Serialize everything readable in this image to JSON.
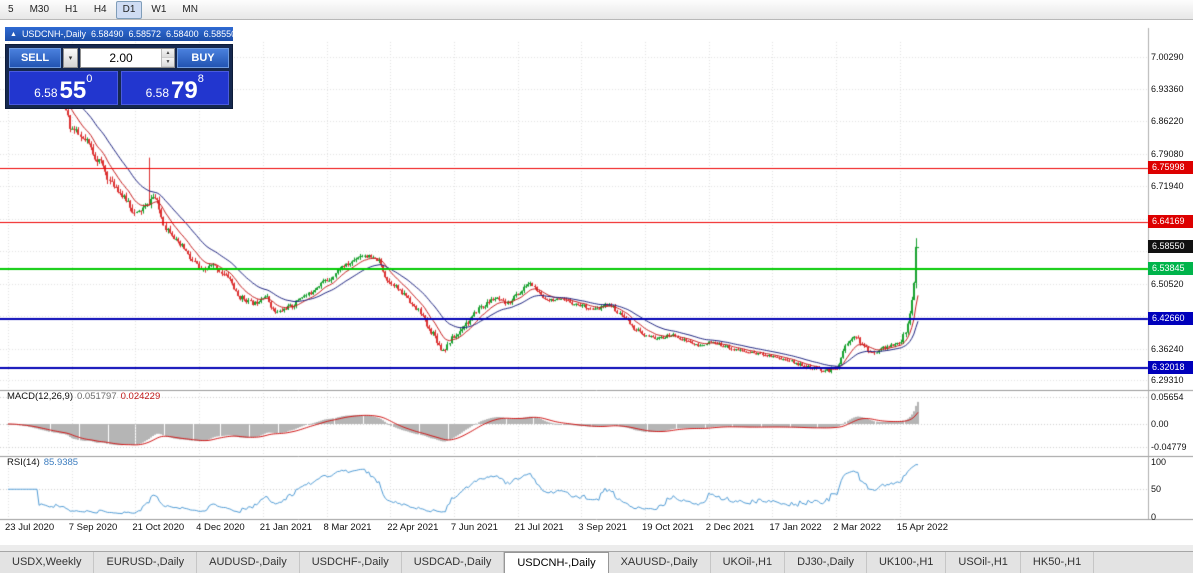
{
  "toolbar": {
    "timeframes": [
      {
        "label": "5",
        "active": false
      },
      {
        "label": "M30",
        "active": false
      },
      {
        "label": "H1",
        "active": false
      },
      {
        "label": "H4",
        "active": false
      },
      {
        "label": "D1",
        "active": true
      },
      {
        "label": "W1",
        "active": false
      },
      {
        "label": "MN",
        "active": false
      }
    ]
  },
  "icons": {
    "collapse": "▲",
    "dropdown": "▾",
    "spin_up": "▲",
    "spin_down": "▼"
  },
  "chart": {
    "title": {
      "symbol": "USDCNH-,Daily",
      "open": "6.58490",
      "high": "6.58572",
      "low": "6.58400",
      "close": "6.58550"
    },
    "trade": {
      "sell_label": "SELL",
      "buy_label": "BUY",
      "lot": "2.00",
      "sell_price": {
        "prefix": "6.58",
        "big": "55",
        "sup": "0"
      },
      "buy_price": {
        "prefix": "6.58",
        "big": "79",
        "sup": "8"
      }
    },
    "price_axis": {
      "labels": [
        {
          "text": "7.00290",
          "value": 7.0029
        },
        {
          "text": "6.93360",
          "value": 6.9336
        },
        {
          "text": "6.86220",
          "value": 6.8622
        },
        {
          "text": "6.79080",
          "value": 6.7908
        },
        {
          "text": "6.71940",
          "value": 6.7194
        },
        {
          "text": "6.50520",
          "value": 6.5052
        },
        {
          "text": "6.36240",
          "value": 6.3624
        },
        {
          "text": "6.29310",
          "value": 6.2931
        }
      ],
      "badges": [
        {
          "text": "6.75998",
          "value": 6.75998,
          "color": "#dd0000"
        },
        {
          "text": "6.64169",
          "value": 6.64169,
          "color": "#dd0000"
        },
        {
          "text": "6.58550",
          "value": 6.5855,
          "color": "#111111"
        },
        {
          "text": "6.53845",
          "value": 6.53845,
          "color": "#00b44b"
        },
        {
          "text": "6.42660",
          "value": 6.4266,
          "color": "#0000bb"
        },
        {
          "text": "6.32018",
          "value": 6.32018,
          "color": "#0000bb"
        }
      ]
    },
    "macd_panel": {
      "label": "MACD(12,26,9)",
      "value_main": "0.051797",
      "value_signal": "0.024229",
      "axis": [
        {
          "text": "0.05654",
          "value": 0.05654
        },
        {
          "text": "0.00",
          "value": 0
        },
        {
          "text": "-0.04779",
          "value": -0.04779
        }
      ]
    },
    "rsi_panel": {
      "label": "RSI(14)",
      "value": "85.9385",
      "axis": [
        {
          "text": "100",
          "value": 100
        },
        {
          "text": "50",
          "value": 50
        },
        {
          "text": "0",
          "value": 0
        }
      ]
    },
    "date_axis": [
      "23 Jul 2020",
      "7 Sep 2020",
      "21 Oct 2020",
      "4 Dec 2020",
      "21 Jan 2021",
      "8 Mar 2021",
      "22 Apr 2021",
      "7 Jun 2021",
      "21 Jul 2021",
      "3 Sep 2021",
      "19 Oct 2021",
      "2 Dec 2021",
      "17 Jan 2022",
      "2 Mar 2022",
      "15 Apr 2022"
    ]
  },
  "tabs": [
    {
      "label": "USDX,Weekly",
      "active": false
    },
    {
      "label": "EURUSD-,Daily",
      "active": false
    },
    {
      "label": "AUDUSD-,Daily",
      "active": false
    },
    {
      "label": "USDCHF-,Daily",
      "active": false
    },
    {
      "label": "USDCAD-,Daily",
      "active": false
    },
    {
      "label": "USDCNH-,Daily",
      "active": true
    },
    {
      "label": "XAUUSD-,Daily",
      "active": false
    },
    {
      "label": "UKOil-,H1",
      "active": false
    },
    {
      "label": "DJ30-,Daily",
      "active": false
    },
    {
      "label": "UK100-,H1",
      "active": false
    },
    {
      "label": "USOil-,H1",
      "active": false
    },
    {
      "label": "HK50-,H1",
      "active": false
    }
  ],
  "chart_data": {
    "type": "candlestick",
    "symbol": "USDCNH-",
    "timeframe": "Daily",
    "current_ohlc": {
      "open": 6.5849,
      "high": 6.58572,
      "low": 6.584,
      "close": 6.5855
    },
    "price_range": [
      6.276,
      7.036
    ],
    "y_grid": [
      7.0029,
      6.9336,
      6.8622,
      6.7908,
      6.7194,
      6.648,
      6.5766,
      6.5052,
      6.4338,
      6.3624,
      6.2931
    ],
    "horizontal_lines": [
      {
        "price": 6.75998,
        "color": "red"
      },
      {
        "price": 6.64169,
        "color": "red"
      },
      {
        "price": 6.53845,
        "color": "green"
      },
      {
        "price": 6.4266,
        "color": "blue"
      },
      {
        "price": 6.32018,
        "color": "blue"
      }
    ],
    "candle_count": 440,
    "close_path": [
      [
        0.0,
        6.998
      ],
      [
        0.015,
        6.985
      ],
      [
        0.03,
        6.955
      ],
      [
        0.05,
        6.92
      ],
      [
        0.062,
        6.895
      ],
      [
        0.07,
        6.845
      ],
      [
        0.085,
        6.818
      ],
      [
        0.1,
        6.775
      ],
      [
        0.115,
        6.723
      ],
      [
        0.13,
        6.69
      ],
      [
        0.14,
        6.658
      ],
      [
        0.15,
        6.672
      ],
      [
        0.16,
        6.695
      ],
      [
        0.175,
        6.625
      ],
      [
        0.19,
        6.588
      ],
      [
        0.205,
        6.552
      ],
      [
        0.212,
        6.532
      ],
      [
        0.225,
        6.545
      ],
      [
        0.24,
        6.522
      ],
      [
        0.255,
        6.475
      ],
      [
        0.27,
        6.462
      ],
      [
        0.282,
        6.478
      ],
      [
        0.295,
        6.442
      ],
      [
        0.31,
        6.455
      ],
      [
        0.325,
        6.478
      ],
      [
        0.35,
        6.512
      ],
      [
        0.37,
        6.545
      ],
      [
        0.39,
        6.568
      ],
      [
        0.405,
        6.558
      ],
      [
        0.42,
        6.508
      ],
      [
        0.435,
        6.482
      ],
      [
        0.45,
        6.448
      ],
      [
        0.465,
        6.4
      ],
      [
        0.478,
        6.36
      ],
      [
        0.49,
        6.388
      ],
      [
        0.505,
        6.42
      ],
      [
        0.52,
        6.455
      ],
      [
        0.535,
        6.472
      ],
      [
        0.548,
        6.462
      ],
      [
        0.56,
        6.482
      ],
      [
        0.573,
        6.505
      ],
      [
        0.59,
        6.472
      ],
      [
        0.61,
        6.468
      ],
      [
        0.63,
        6.458
      ],
      [
        0.645,
        6.448
      ],
      [
        0.66,
        6.46
      ],
      [
        0.675,
        6.435
      ],
      [
        0.69,
        6.405
      ],
      [
        0.7,
        6.39
      ],
      [
        0.715,
        6.385
      ],
      [
        0.73,
        6.392
      ],
      [
        0.745,
        6.38
      ],
      [
        0.76,
        6.368
      ],
      [
        0.77,
        6.376
      ],
      [
        0.785,
        6.37
      ],
      [
        0.8,
        6.36
      ],
      [
        0.815,
        6.354
      ],
      [
        0.83,
        6.35
      ],
      [
        0.84,
        6.346
      ],
      [
        0.855,
        6.338
      ],
      [
        0.87,
        6.328
      ],
      [
        0.885,
        6.318
      ],
      [
        0.9,
        6.314
      ],
      [
        0.91,
        6.32
      ],
      [
        0.922,
        6.372
      ],
      [
        0.93,
        6.392
      ],
      [
        0.94,
        6.368
      ],
      [
        0.95,
        6.352
      ],
      [
        0.96,
        6.364
      ],
      [
        0.97,
        6.368
      ],
      [
        0.98,
        6.374
      ],
      [
        0.986,
        6.398
      ],
      [
        0.991,
        6.445
      ],
      [
        0.996,
        6.515
      ],
      [
        1.0,
        6.5855
      ]
    ],
    "volatility_path": [
      [
        0.0,
        0.022
      ],
      [
        0.07,
        0.018
      ],
      [
        0.14,
        0.017
      ],
      [
        0.21,
        0.013
      ],
      [
        0.3,
        0.011
      ],
      [
        0.42,
        0.011
      ],
      [
        0.49,
        0.013
      ],
      [
        0.56,
        0.01
      ],
      [
        0.63,
        0.009
      ],
      [
        0.7,
        0.008
      ],
      [
        0.77,
        0.007
      ],
      [
        0.84,
        0.0065
      ],
      [
        0.91,
        0.009
      ],
      [
        0.96,
        0.008
      ],
      [
        1.0,
        0.015
      ]
    ],
    "spikes": [
      {
        "t": 0.156,
        "high": 6.782
      }
    ],
    "indicators": {
      "macd": {
        "params": [
          12,
          26,
          9
        ],
        "current_macd": 0.051797,
        "current_signal": 0.024229,
        "axis_ticks": [
          0.05654,
          0,
          -0.04779
        ]
      },
      "rsi": {
        "period": 14,
        "current": 85.9385,
        "axis_ticks": [
          100,
          50,
          0
        ]
      }
    }
  }
}
